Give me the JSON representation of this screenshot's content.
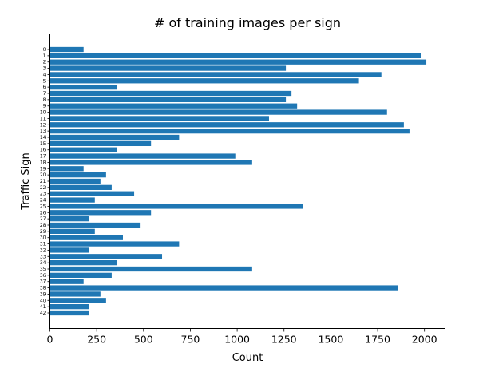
{
  "chart_data": {
    "type": "bar",
    "orientation": "horizontal",
    "title": "# of training images per sign",
    "xlabel": "Count",
    "ylabel": "Traffic Sign",
    "categories": [
      "0",
      "1",
      "2",
      "3",
      "4",
      "5",
      "6",
      "7",
      "8",
      "9",
      "10",
      "11",
      "12",
      "13",
      "14",
      "15",
      "16",
      "17",
      "18",
      "19",
      "20",
      "21",
      "22",
      "23",
      "24",
      "25",
      "26",
      "27",
      "28",
      "29",
      "30",
      "31",
      "32",
      "33",
      "34",
      "35",
      "36",
      "37",
      "38",
      "39",
      "40",
      "41",
      "42"
    ],
    "values": [
      180,
      1980,
      2010,
      1260,
      1770,
      1650,
      360,
      1290,
      1260,
      1320,
      1800,
      1170,
      1890,
      1920,
      690,
      540,
      360,
      990,
      1080,
      180,
      300,
      270,
      330,
      450,
      240,
      1350,
      540,
      210,
      480,
      240,
      390,
      690,
      210,
      599,
      360,
      1080,
      330,
      180,
      1860,
      270,
      300,
      210,
      210
    ],
    "xlim": [
      0,
      2110
    ],
    "xticks": [
      "0",
      "250",
      "500",
      "750",
      "1000",
      "1250",
      "1500",
      "1750",
      "2000"
    ],
    "bar_color": "#1f77b4",
    "grid": false,
    "legend": "none"
  }
}
